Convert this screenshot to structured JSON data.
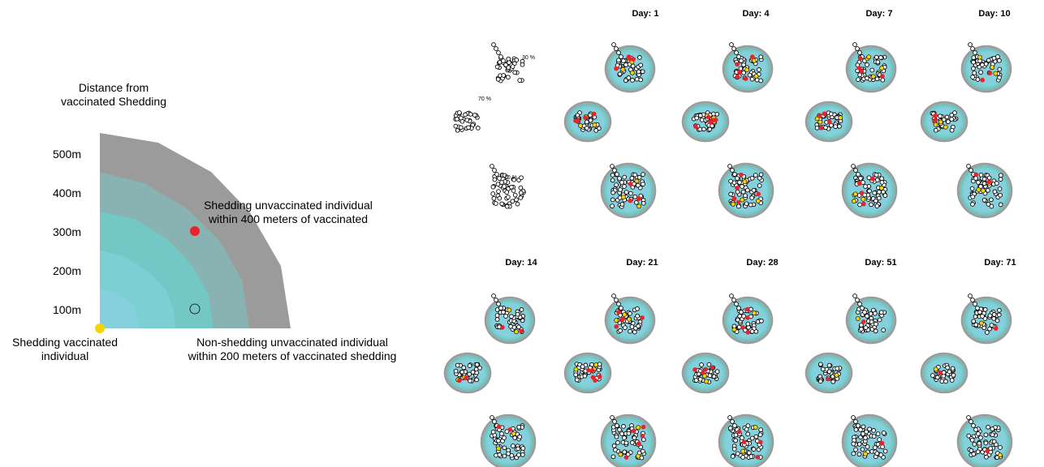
{
  "legend": {
    "title_line1": "Distance from",
    "title_line2": "vaccinated Shedding",
    "distances": [
      "500m",
      "400m",
      "300m",
      "200m",
      "100m"
    ],
    "shedding_vaccinated_line1": "Shedding vaccinated",
    "shedding_vaccinated_line2": "individual",
    "shedding_unvaccinated_line1": "Shedding unvaccinated individual",
    "shedding_unvaccinated_line2": "within  400 meters of vaccinated",
    "nonshedding_line1": "Non-shedding unvaccinated individual",
    "nonshedding_line2": "within  200 meters of  vaccinated shedding",
    "zone_colors": [
      "#9b9b9b",
      "#88b3b2",
      "#73c8c6",
      "#7ccfd3",
      "#86d0de"
    ],
    "shedding_vaccinated_color": "#f5d400",
    "shedding_unvaccinated_color": "#e8242b"
  },
  "baseline": {
    "cluster_labels": [
      "30 %",
      "70 %",
      "10 %"
    ]
  },
  "panels": [
    {
      "title": "Day: 1"
    },
    {
      "title": "Day: 4"
    },
    {
      "title": "Day: 7"
    },
    {
      "title": "Day: 10"
    },
    {
      "title": "Day: 14"
    },
    {
      "title": "Day: 21"
    },
    {
      "title": "Day: 28"
    },
    {
      "title": "Day: 51"
    },
    {
      "title": "Day: 71"
    }
  ]
}
